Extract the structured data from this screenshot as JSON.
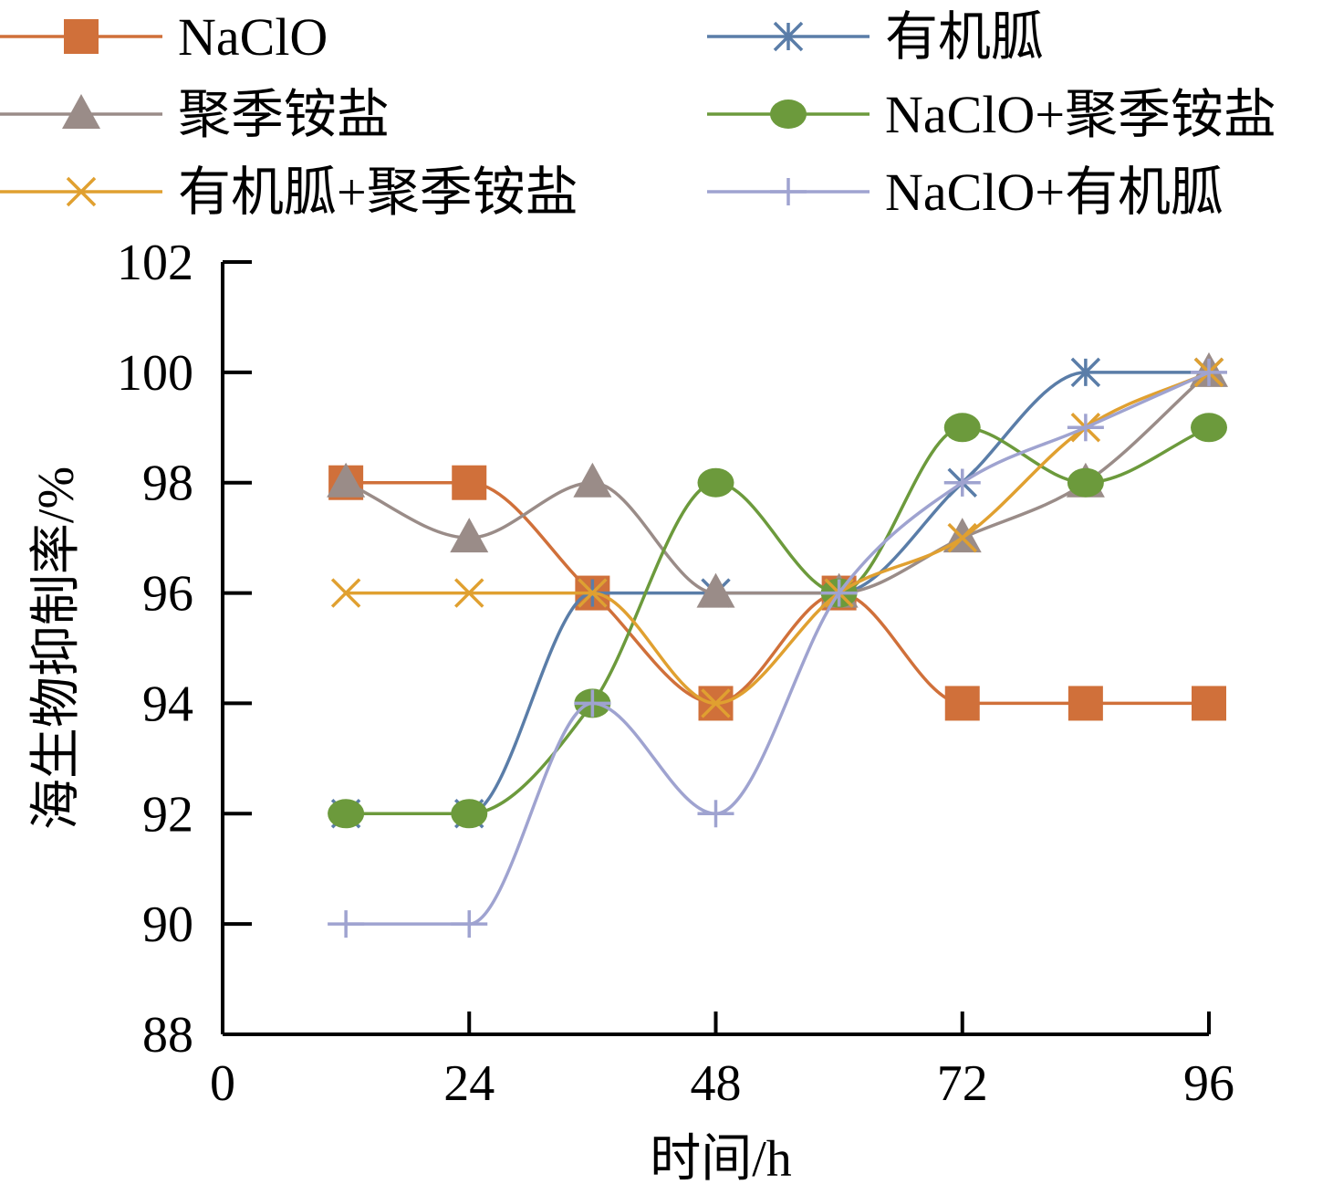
{
  "chart_data": {
    "type": "line",
    "xlabel": "时间/h",
    "ylabel": "海生物抑制率/%",
    "xlim": [
      0,
      96
    ],
    "ylim": [
      88,
      102
    ],
    "x_ticks": [
      0,
      24,
      48,
      72,
      96
    ],
    "y_ticks": [
      88,
      90,
      92,
      94,
      96,
      98,
      100,
      102
    ],
    "x": [
      12,
      24,
      36,
      48,
      60,
      72,
      84,
      96
    ],
    "legend_position": "top",
    "grid": false,
    "smooth": true,
    "series": [
      {
        "name": "NaClO",
        "color": "#D0703A",
        "marker": "square",
        "values": [
          98,
          98,
          96,
          94,
          96,
          94,
          94,
          94
        ]
      },
      {
        "name": "有机胍",
        "color": "#5A7DA8",
        "marker": "asterisk",
        "values": [
          92,
          92,
          96,
          96,
          96,
          98,
          100,
          100
        ]
      },
      {
        "name": "聚季铵盐",
        "color": "#9A8C88",
        "marker": "triangle",
        "values": [
          98,
          97,
          98,
          96,
          96,
          97,
          98,
          100
        ]
      },
      {
        "name": "NaClO+聚季铵盐",
        "color": "#6C9A3C",
        "marker": "circle",
        "values": [
          92,
          92,
          94,
          98,
          96,
          99,
          98,
          99
        ]
      },
      {
        "name": "有机胍+聚季铵盐",
        "color": "#E0A030",
        "marker": "x",
        "values": [
          96,
          96,
          96,
          94,
          96,
          97,
          99,
          100
        ]
      },
      {
        "name": "NaClO+有机胍",
        "color": "#9FA3D0",
        "marker": "plus",
        "values": [
          90,
          90,
          94,
          92,
          96,
          98,
          99,
          100
        ]
      }
    ]
  }
}
